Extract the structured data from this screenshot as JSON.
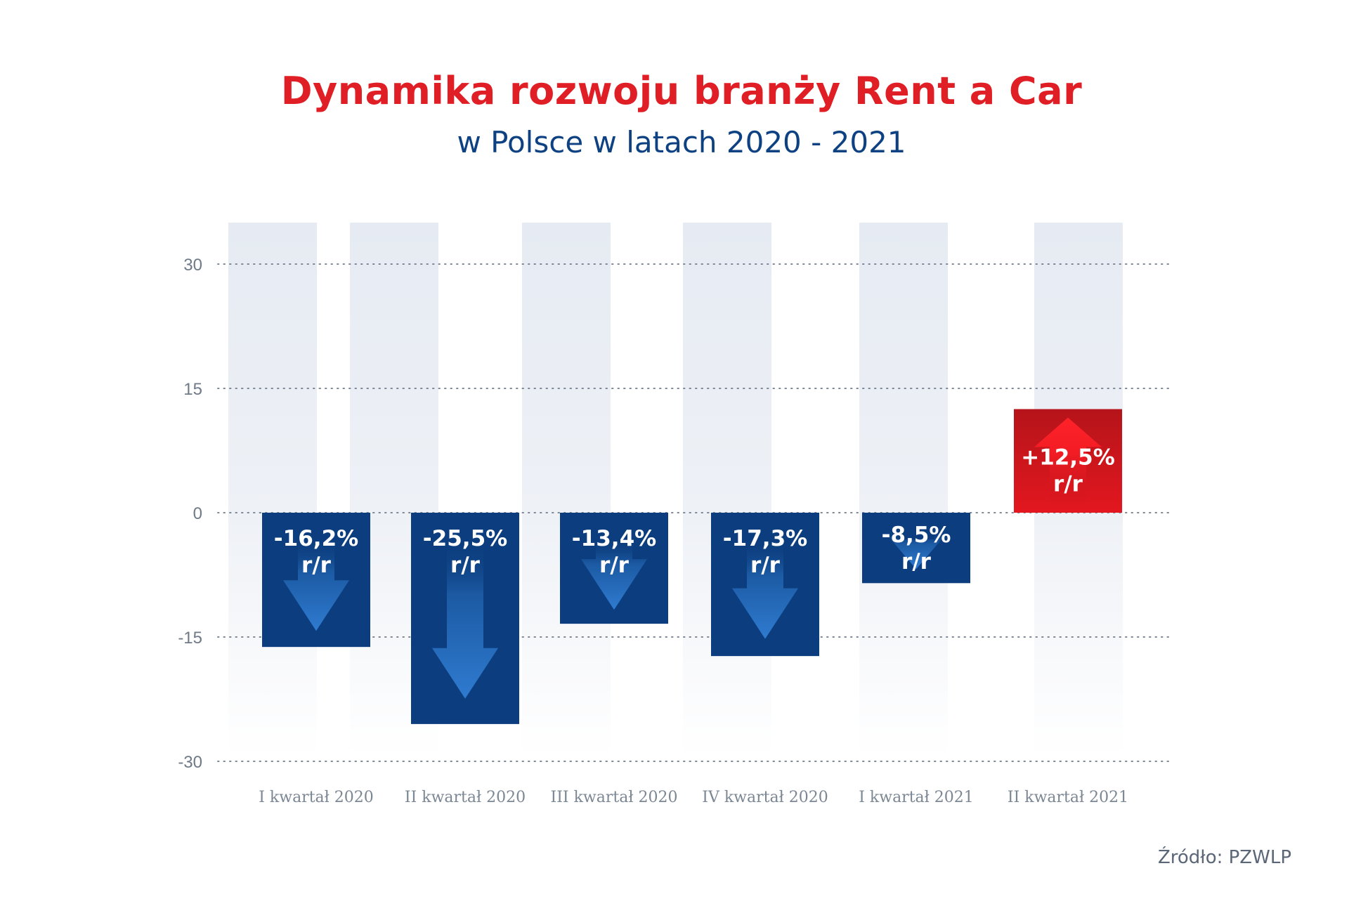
{
  "title": "Dynamika rozwoju branży Rent a Car",
  "subtitle": "w Polsce w latach 2020 - 2021",
  "source": "Źródło: PZWLP",
  "colors": {
    "title": "#e01e25",
    "subtitle": "#0d4182",
    "negative": "#0c3e7f",
    "negative_arrow": "#2a73c6",
    "positive": "#c5161d",
    "positive_arrow": "#ff1d25",
    "column_bg": "#e6ebf3"
  },
  "chart_data": {
    "type": "bar",
    "title": "Dynamika rozwoju branży Rent a Car",
    "subtitle": "w Polsce w latach 2020 - 2021",
    "categories": [
      "I kwartał 2020",
      "II kwartał 2020",
      "III kwartał 2020",
      "IV kwartał 2020",
      "I kwartał 2021",
      "II kwartał 2021"
    ],
    "values": [
      -16.2,
      -25.5,
      -13.4,
      -17.3,
      -8.5,
      12.5
    ],
    "data_labels": [
      [
        "-16,2%",
        "r/r"
      ],
      [
        "-25,5%",
        "r/r"
      ],
      [
        "-13,4%",
        "r/r"
      ],
      [
        "-17,3%",
        "r/r"
      ],
      [
        "-8,5%",
        "r/r"
      ],
      [
        "+12,5%",
        "r/r"
      ]
    ],
    "yticks": [
      30,
      15,
      0,
      -15,
      -30
    ],
    "ylim": [
      -30,
      30
    ],
    "grid": true,
    "xlabel": "",
    "ylabel": ""
  }
}
